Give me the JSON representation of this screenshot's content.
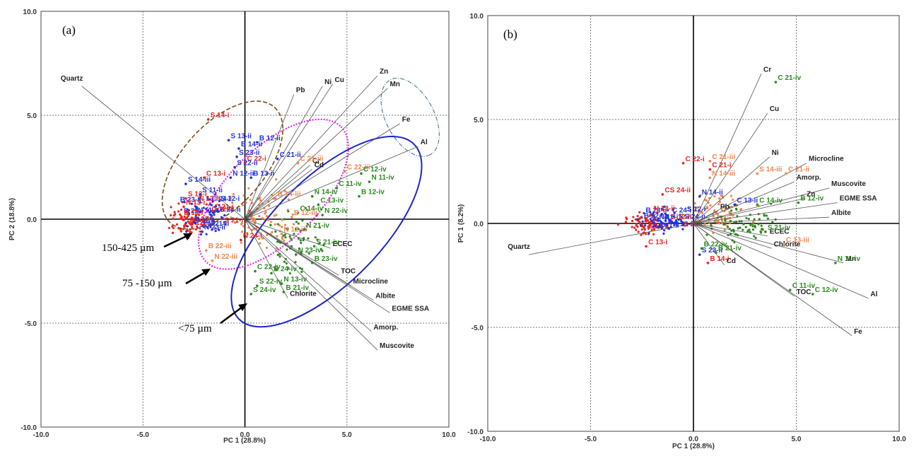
{
  "colors": {
    "line": "#555555",
    "grid": "#777777",
    "red": "#e8251e",
    "blue": "#2233dd",
    "orange": "#f0864a",
    "green": "#2a8a1e",
    "magenta": "#ee22ee",
    "navy": "#1d26cc",
    "brown": "#7a4a1a",
    "teal": "#3a6a8a"
  },
  "chart_data": [
    {
      "type": "scatter",
      "panel_label": "(a)",
      "xlabel": "PC 1 (28.8%)",
      "ylabel": "PC 2 (18.8%)",
      "xlim": [
        -10,
        10
      ],
      "ylim": [
        -10,
        10
      ],
      "grid": true,
      "xticks": [
        "-10.0",
        "-5.0",
        "0.0",
        "5.0",
        "10.0"
      ],
      "yticks": [
        "-10.0",
        "-5.0",
        "0.0",
        "5.0",
        "10.0"
      ],
      "loadings": [
        {
          "name": "Quartz",
          "x": -8.0,
          "y": 6.4
        },
        {
          "name": "Pb",
          "x": 2.4,
          "y": 6.0
        },
        {
          "name": "Ni",
          "x": 3.8,
          "y": 6.4
        },
        {
          "name": "Cu",
          "x": 4.3,
          "y": 6.5
        },
        {
          "name": "Zn",
          "x": 6.5,
          "y": 6.9
        },
        {
          "name": "Mn",
          "x": 7.0,
          "y": 6.3
        },
        {
          "name": "Fe",
          "x": 7.6,
          "y": 4.6
        },
        {
          "name": "Al",
          "x": 8.5,
          "y": 3.5
        },
        {
          "name": "Cr",
          "x": 3.2,
          "y": 2.6
        },
        {
          "name": "Cd",
          "x": 3.3,
          "y": 2.4
        },
        {
          "name": "ECEC",
          "x": 4.2,
          "y": -1.4
        },
        {
          "name": "TOC",
          "x": 4.6,
          "y": -2.7
        },
        {
          "name": "Microcline",
          "x": 5.2,
          "y": -3.2
        },
        {
          "name": "Albite",
          "x": 6.3,
          "y": -3.9
        },
        {
          "name": "EGME SSA",
          "x": 7.1,
          "y": -4.5
        },
        {
          "name": "Chlorite",
          "x": 2.1,
          "y": -3.8
        },
        {
          "name": "Amorp.",
          "x": 6.2,
          "y": -5.4
        },
        {
          "name": "Muscovite",
          "x": 6.5,
          "y": -6.3
        }
      ],
      "scores": [
        {
          "label": "S 14-i",
          "x": -1.8,
          "y": 4.9,
          "group": "i"
        },
        {
          "label": "S 13-ii",
          "x": -0.8,
          "y": 3.9,
          "group": "ii"
        },
        {
          "label": "B 12-ii",
          "x": 0.6,
          "y": 3.8,
          "group": "ii"
        },
        {
          "label": "B 14-ii",
          "x": -0.3,
          "y": 3.5,
          "group": "ii"
        },
        {
          "label": "S 23-ii",
          "x": -0.4,
          "y": 3.1,
          "group": "ii"
        },
        {
          "label": "C 22-i",
          "x": 0.0,
          "y": 2.8,
          "group": "i"
        },
        {
          "label": "C 21-ii",
          "x": 1.6,
          "y": 3.0,
          "group": "ii"
        },
        {
          "label": "S 22-ii",
          "x": -0.5,
          "y": 2.6,
          "group": "ii"
        },
        {
          "label": "B 13-ii",
          "x": 0.3,
          "y": 2.1,
          "group": "ii"
        },
        {
          "label": "N 12-ii",
          "x": -0.7,
          "y": 2.1,
          "group": "ii"
        },
        {
          "label": "C 13-i",
          "x": -2.0,
          "y": 2.1,
          "group": "i"
        },
        {
          "label": "S 14-iii",
          "x": -2.9,
          "y": 1.8,
          "group": "ii"
        },
        {
          "label": "S 13-i",
          "x": -2.9,
          "y": 1.1,
          "group": "i"
        },
        {
          "label": "S 11-ii",
          "x": -2.2,
          "y": 1.3,
          "group": "ii"
        },
        {
          "label": "C 21-iii",
          "x": 2.6,
          "y": 2.8,
          "group": "iii"
        },
        {
          "label": "C 22-iii",
          "x": 4.9,
          "y": 2.4,
          "group": "iii"
        },
        {
          "label": "C 12-iv",
          "x": 5.7,
          "y": 2.3,
          "group": "iv"
        },
        {
          "label": "N 11-iv",
          "x": 6.1,
          "y": 1.9,
          "group": "iv"
        },
        {
          "label": "C 11-iv",
          "x": 4.5,
          "y": 1.6,
          "group": "iv"
        },
        {
          "label": "B 12-iv",
          "x": 5.6,
          "y": 1.2,
          "group": "iv"
        },
        {
          "label": "N 14-iv",
          "x": 3.3,
          "y": 1.2,
          "group": "iv"
        },
        {
          "label": "C 13-iv",
          "x": 3.6,
          "y": 0.8,
          "group": "iv"
        },
        {
          "label": "B 14-iii",
          "x": 1.5,
          "y": 1.1,
          "group": "iii"
        },
        {
          "label": "C 14-iv",
          "x": 2.6,
          "y": 0.4,
          "group": "iv"
        },
        {
          "label": "N 22-iv",
          "x": 3.8,
          "y": 0.3,
          "group": "iv"
        },
        {
          "label": "B 12-iii",
          "x": 2.3,
          "y": 0.2,
          "group": "iii"
        },
        {
          "label": "N 12-iii",
          "x": 1.8,
          "y": -0.6,
          "group": "iii"
        },
        {
          "label": "N 21-iv",
          "x": 2.9,
          "y": -0.4,
          "group": "iv"
        },
        {
          "label": "N 24-i",
          "x": -0.2,
          "y": -0.9,
          "group": "i"
        },
        {
          "label": "S 21-iv",
          "x": 3.4,
          "y": -1.2,
          "group": "iv"
        },
        {
          "label": "N 23-iv",
          "x": 2.5,
          "y": -1.6,
          "group": "iv"
        },
        {
          "label": "B 23-iv",
          "x": 3.3,
          "y": -2.0,
          "group": "iv"
        },
        {
          "label": "C 22-iv",
          "x": 0.5,
          "y": -2.4,
          "group": "iv"
        },
        {
          "label": "B 24-iv",
          "x": 1.3,
          "y": -2.5,
          "group": "iv"
        },
        {
          "label": "S 22-iv",
          "x": 0.6,
          "y": -3.1,
          "group": "iv"
        },
        {
          "label": "N 13-iv",
          "x": 1.8,
          "y": -3.0,
          "group": "iv"
        },
        {
          "label": "B 21-iv",
          "x": 1.9,
          "y": -3.4,
          "group": "iv"
        },
        {
          "label": "S 24-iv",
          "x": 0.3,
          "y": -3.5,
          "group": "iv"
        },
        {
          "label": "B 22-iii",
          "x": -1.9,
          "y": -1.4,
          "group": "iii"
        },
        {
          "label": "N 22-iii",
          "x": -1.6,
          "y": -1.9,
          "group": "iii"
        },
        {
          "label": "N 23-ii",
          "x": -2.1,
          "y": -0.5,
          "group": "ii"
        },
        {
          "label": "B 13-i",
          "x": -3.1,
          "y": 0.2,
          "group": "i"
        },
        {
          "label": "N 13-i",
          "x": -3.0,
          "y": 0.7,
          "group": "i"
        },
        {
          "label": "C 21-i",
          "x": -1.6,
          "y": 0.5,
          "group": "i"
        },
        {
          "label": "S 23-i",
          "x": -2.6,
          "y": -0.1,
          "group": "i"
        }
      ],
      "annotations": [
        {
          "text": "150-425 µm",
          "target": "brown ellipse"
        },
        {
          "text": "75 -150 µm",
          "target": "magenta ellipse"
        },
        {
          "text": "<75 µm",
          "target": "blue ellipse"
        }
      ]
    },
    {
      "type": "scatter",
      "panel_label": "(b)",
      "xlabel": "PC 1 (28.8%)",
      "ylabel": "PC 1 (8.2%)",
      "xlim": [
        -10,
        10
      ],
      "ylim": [
        -10,
        10
      ],
      "grid": true,
      "xticks": [
        "-10.0",
        "-5.0",
        "0.0",
        "5.0",
        "10.0"
      ],
      "yticks": [
        "-10.0",
        "-5.0",
        "0.0",
        "5.0",
        "10.0"
      ],
      "loadings": [
        {
          "name": "Cr",
          "x": 3.3,
          "y": 7.2
        },
        {
          "name": "Cu",
          "x": 3.6,
          "y": 5.3
        },
        {
          "name": "Ni",
          "x": 3.7,
          "y": 3.2
        },
        {
          "name": "Microcline",
          "x": 5.5,
          "y": 2.9
        },
        {
          "name": "Amorp.",
          "x": 4.9,
          "y": 2.0
        },
        {
          "name": "Muscovite",
          "x": 6.6,
          "y": 1.7
        },
        {
          "name": "Zn",
          "x": 5.4,
          "y": 1.2
        },
        {
          "name": "EGME SSA",
          "x": 7.0,
          "y": 1.0
        },
        {
          "name": "Albite",
          "x": 6.6,
          "y": 0.3
        },
        {
          "name": "Pb",
          "x": 1.2,
          "y": 0.6
        },
        {
          "name": "ECEC",
          "x": 3.6,
          "y": -0.6
        },
        {
          "name": "Chlorite",
          "x": 3.8,
          "y": -1.2
        },
        {
          "name": "Cd",
          "x": 1.5,
          "y": -2.0
        },
        {
          "name": "Mn",
          "x": 7.3,
          "y": -1.9
        },
        {
          "name": "TOC",
          "x": 4.9,
          "y": -3.5
        },
        {
          "name": "Al",
          "x": 8.5,
          "y": -3.6
        },
        {
          "name": "Fe",
          "x": 7.7,
          "y": -5.4
        },
        {
          "name": "Quartz",
          "x": -8.0,
          "y": -1.5
        }
      ],
      "scores": [
        {
          "label": "C 21-iv",
          "x": 4.0,
          "y": 6.9,
          "group": "iv"
        },
        {
          "label": "C 22-i",
          "x": -0.5,
          "y": 3.0,
          "group": "i"
        },
        {
          "label": "C 21-iii",
          "x": 0.8,
          "y": 3.1,
          "group": "iii"
        },
        {
          "label": "C 21-i",
          "x": 0.8,
          "y": 2.7,
          "group": "i"
        },
        {
          "label": "S 14-iii",
          "x": 3.1,
          "y": 2.5,
          "group": "iii"
        },
        {
          "label": "C 21-ii",
          "x": 4.5,
          "y": 2.5,
          "group": "iii"
        },
        {
          "label": "N 14-iii",
          "x": 0.8,
          "y": 2.3,
          "group": "iii"
        },
        {
          "label": "CS 24-ii",
          "x": -1.5,
          "y": 1.5,
          "group": "i"
        },
        {
          "label": "N 14-ii",
          "x": 0.3,
          "y": 1.4,
          "group": "ii"
        },
        {
          "label": "C 14-iv",
          "x": 3.1,
          "y": 1.0,
          "group": "iv"
        },
        {
          "label": "C 13-ii",
          "x": 2.0,
          "y": 1.0,
          "group": "ii"
        },
        {
          "label": "B 12-iv",
          "x": 5.1,
          "y": 1.1,
          "group": "iv"
        },
        {
          "label": "S 21-iv",
          "x": 3.5,
          "y": -0.3,
          "group": "iv"
        },
        {
          "label": "C 13-iii",
          "x": 4.4,
          "y": -0.9,
          "group": "iii"
        },
        {
          "label": "S 23-ii",
          "x": 0.3,
          "y": -1.4,
          "group": "ii"
        },
        {
          "label": "B 22-iv",
          "x": 0.4,
          "y": -1.1,
          "group": "iv"
        },
        {
          "label": "B 21-iv",
          "x": 1.1,
          "y": -1.3,
          "group": "iv"
        },
        {
          "label": "B 14-i",
          "x": 0.7,
          "y": -1.8,
          "group": "i"
        },
        {
          "label": "C 13-i",
          "x": -2.3,
          "y": -1.0,
          "group": "i"
        },
        {
          "label": "N 11-iv",
          "x": 6.9,
          "y": -1.8,
          "group": "iv"
        },
        {
          "label": "C 11-iv",
          "x": 4.7,
          "y": -3.1,
          "group": "iv"
        },
        {
          "label": "C 12-iv",
          "x": 5.8,
          "y": -3.3,
          "group": "iv"
        }
      ]
    }
  ]
}
